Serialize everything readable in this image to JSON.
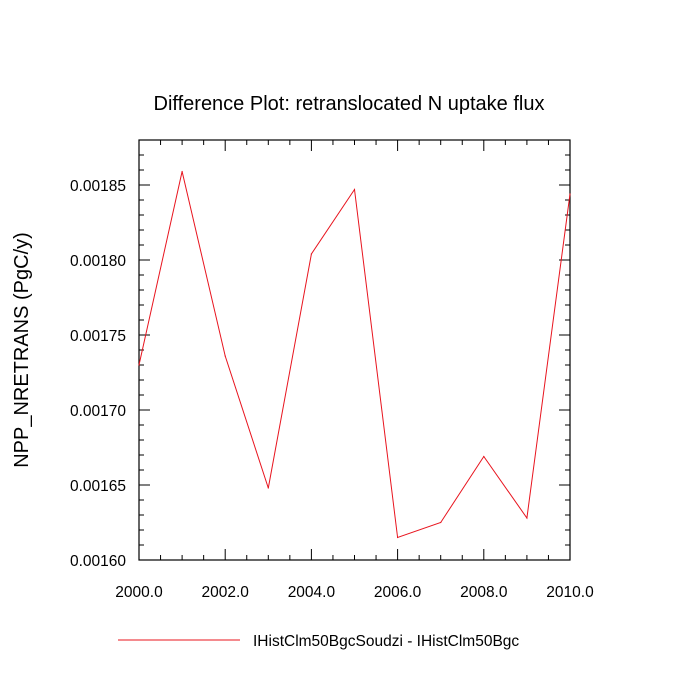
{
  "chart_data": {
    "type": "line",
    "title": "Difference Plot: retranslocated N uptake flux",
    "xlabel": "",
    "ylabel": "NPP_NRETRANS  (PgC/y)",
    "xlim": [
      2000.0,
      2010.0
    ],
    "ylim": [
      0.0016,
      0.00188
    ],
    "x_ticks": [
      "2000.0",
      "2002.0",
      "2004.0",
      "2006.0",
      "2008.0",
      "2010.0"
    ],
    "x_tick_values": [
      2000,
      2002,
      2004,
      2006,
      2008,
      2010
    ],
    "y_ticks": [
      "0.00160",
      "0.00165",
      "0.00170",
      "0.00175",
      "0.00180",
      "0.00185"
    ],
    "y_tick_values": [
      0.0016,
      0.00165,
      0.0017,
      0.00175,
      0.0018,
      0.00185
    ],
    "grid": false,
    "legend_position": "bottom",
    "series": [
      {
        "name": "IHistClm50BgcSoudzi - IHistClm50Bgc",
        "color": "#e8141e",
        "x": [
          2000,
          2001,
          2002,
          2003,
          2004,
          2005,
          2006,
          2007,
          2008,
          2009,
          2010
        ],
        "values": [
          0.00173,
          0.001859,
          0.001736,
          0.001648,
          0.001804,
          0.001847,
          0.001615,
          0.001625,
          0.001669,
          0.001628,
          0.001844
        ]
      }
    ]
  }
}
